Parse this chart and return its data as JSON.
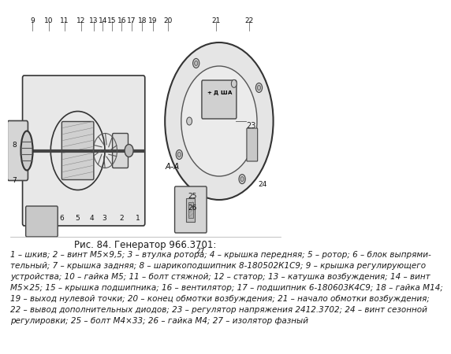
{
  "title": "Рис. 84. Генератор 966.3701:",
  "title_fontsize": 8.5,
  "caption_fontsize": 7.5,
  "bg_color": "#f5f5f0",
  "text_color": "#1a1a1a",
  "caption_lines": [
    "1 – шкив; 2 – винт М5×9,5; 3 – втулка ротора; 4 – крышка передняя; 5 – ротор; 6 – блок выпрями-",
    "тельный; 7 – крышка задняя; 8 – шарикоподшипник 8-180502К1С9; 9 – крышка регулирующего",
    "устройства; 10 – гайка М5; 11 – болт стяжной; 12 – статор; 13 – катушка возбуждения; 14 – винт",
    "М5×25; 15 – крышка подшипника; 16 – вентилятор; 17 – подшипник 6-180603К4С9; 18 – гайка М14;",
    "19 – выход нулевой точки; 20 – конец обмотки возбуждения; 21 – начало обмотки возбуждения;",
    "22 – вывод дополнительных диодов; 23 – регулятор напряжения 2412.3702; 24 – винт сезонной",
    "регулировки; 25 – болт М4×33; 26 – гайка М4; 27 – изолятор фазный"
  ]
}
